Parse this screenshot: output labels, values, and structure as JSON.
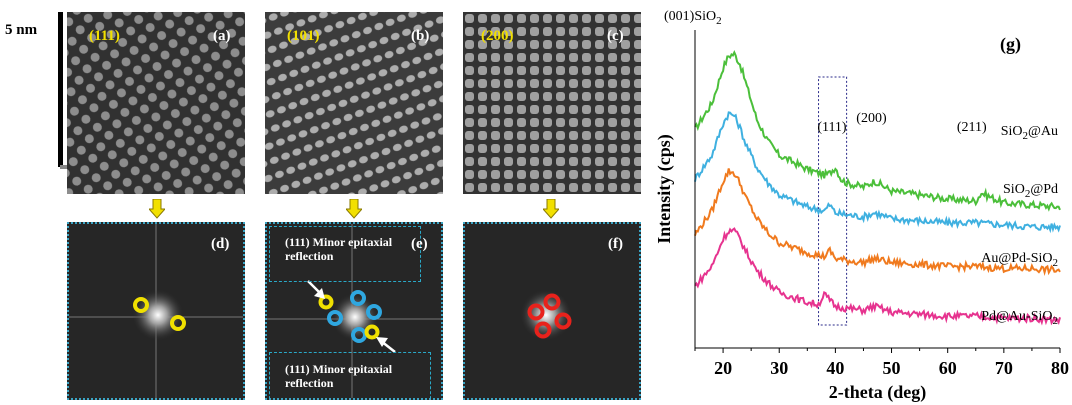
{
  "scale_bar": {
    "label": "5 nm"
  },
  "hrtem_panels": [
    {
      "id": "a",
      "plane": "(111)",
      "label": "(a)"
    },
    {
      "id": "b",
      "plane": "(101)",
      "label": "(b)"
    },
    {
      "id": "c",
      "plane": "(200)",
      "label": "(c)"
    }
  ],
  "fft_panels": [
    {
      "id": "d",
      "label": "(d)"
    },
    {
      "id": "e",
      "label": "(e)",
      "annotation_top": [
        "(111) Minor epitaxial",
        "reflection"
      ],
      "annotation_bottom": [
        "(111) Minor epitaxial",
        "reflection"
      ]
    },
    {
      "id": "f",
      "label": "(f)"
    }
  ],
  "colors": {
    "miller_text": "#f2e000",
    "arrow_fill": "#f2e000",
    "ring_yellow": "#f0e000",
    "ring_blue": "#2fa7e0",
    "ring_red": "#e8221c",
    "fft_border": "#3aa4c4"
  },
  "chart_data": {
    "type": "line",
    "panel_label": "(g)",
    "xlabel": "2-theta (deg)",
    "ylabel": "Intensity (cps)",
    "xlim": [
      15,
      80
    ],
    "xticks": [
      20,
      30,
      40,
      50,
      60,
      70,
      80
    ],
    "grid": false,
    "peak_labels": [
      {
        "text": "(001)SiO",
        "sub": "2",
        "x": 22
      },
      {
        "text": "(111)",
        "x": 38.5
      },
      {
        "text": "(200)",
        "x": 45
      },
      {
        "text": "(211)",
        "x": 65
      }
    ],
    "highlight_range": [
      37,
      42
    ],
    "series": [
      {
        "name": "SiO2@Au",
        "label_main": "SiO",
        "label_sub": "2",
        "label_tail": "@Au",
        "color": "#4bbf3a",
        "x": [
          15,
          18,
          20,
          21,
          22,
          23,
          24,
          26,
          28,
          30,
          35,
          38,
          39,
          40,
          41,
          42,
          45,
          47,
          50,
          55,
          60,
          65,
          66,
          70,
          75,
          80
        ],
        "y": [
          0.55,
          0.68,
          0.86,
          0.92,
          0.93,
          0.88,
          0.79,
          0.6,
          0.49,
          0.42,
          0.35,
          0.32,
          0.33,
          0.36,
          0.3,
          0.28,
          0.26,
          0.29,
          0.24,
          0.22,
          0.2,
          0.19,
          0.23,
          0.18,
          0.17,
          0.16
        ]
      },
      {
        "name": "SiO2@Pd",
        "label_main": "SiO",
        "label_sub": "2",
        "label_tail": "@Pd",
        "color": "#3fb0e0",
        "x": [
          15,
          18,
          20,
          21,
          22,
          23,
          24,
          26,
          28,
          30,
          35,
          38,
          39,
          40,
          42,
          45,
          47,
          50,
          55,
          60,
          65,
          70,
          75,
          80
        ],
        "y": [
          0.3,
          0.42,
          0.58,
          0.63,
          0.62,
          0.56,
          0.48,
          0.36,
          0.28,
          0.22,
          0.16,
          0.14,
          0.17,
          0.13,
          0.12,
          0.11,
          0.13,
          0.1,
          0.09,
          0.08,
          0.08,
          0.07,
          0.06,
          0.06
        ]
      },
      {
        "name": "Au@Pd-SiO2",
        "label_main": "Au@Pd-SiO",
        "label_sub": "2",
        "label_tail": "",
        "color": "#f07a1e",
        "x": [
          15,
          18,
          20,
          21,
          22,
          23,
          24,
          26,
          28,
          30,
          35,
          38,
          39,
          40,
          42,
          45,
          47,
          50,
          55,
          60,
          65,
          70,
          75,
          80
        ],
        "y": [
          0.02,
          0.14,
          0.29,
          0.34,
          0.33,
          0.28,
          0.21,
          0.1,
          0.03,
          -0.02,
          -0.07,
          -0.09,
          -0.06,
          -0.1,
          -0.11,
          -0.12,
          -0.1,
          -0.12,
          -0.13,
          -0.14,
          -0.14,
          -0.15,
          -0.15,
          -0.16
        ]
      },
      {
        "name": "Pd@Au-SiO2",
        "label_main": "Pd@Au-SiO",
        "label_sub": "2",
        "label_tail": "",
        "color": "#e6338f",
        "x": [
          15,
          18,
          20,
          21,
          22,
          23,
          24,
          26,
          28,
          30,
          35,
          37,
          38,
          39,
          40,
          42,
          45,
          47,
          50,
          55,
          60,
          65,
          70,
          75,
          80
        ],
        "y": [
          -0.24,
          -0.14,
          0.0,
          0.04,
          0.04,
          0.0,
          -0.06,
          -0.16,
          -0.22,
          -0.27,
          -0.32,
          -0.33,
          -0.28,
          -0.31,
          -0.34,
          -0.35,
          -0.36,
          -0.34,
          -0.37,
          -0.38,
          -0.39,
          -0.39,
          -0.4,
          -0.4,
          -0.41
        ]
      }
    ]
  }
}
